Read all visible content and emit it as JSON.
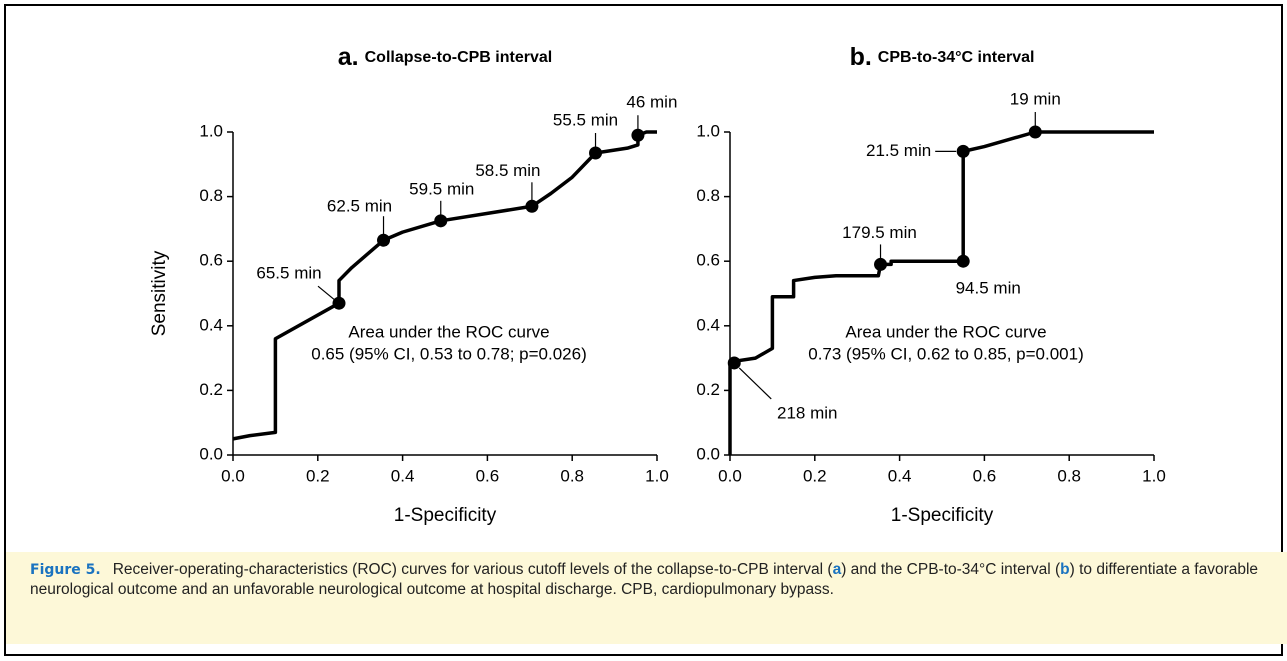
{
  "chart_data": [
    {
      "type": "line",
      "panel": "a.",
      "title": "Collapse-to-CPB interval",
      "xlabel": "1-Specificity",
      "ylabel": "Sensitivity",
      "x": [
        0,
        0.04,
        0.1,
        0.1,
        0.25,
        0.25,
        0.28,
        0.355,
        0.4,
        0.49,
        0.705,
        0.75,
        0.8,
        0.855,
        0.93,
        0.955,
        0.955,
        0.975,
        1.0
      ],
      "values": [
        0.05,
        0.06,
        0.07,
        0.36,
        0.47,
        0.54,
        0.58,
        0.665,
        0.69,
        0.725,
        0.77,
        0.81,
        0.86,
        0.935,
        0.95,
        0.96,
        0.99,
        1.0,
        1.0
      ],
      "color": "#000000",
      "points": {
        "x": [
          0.25,
          0.355,
          0.49,
          0.705,
          0.855,
          0.955
        ],
        "values": [
          0.47,
          0.665,
          0.725,
          0.77,
          0.935,
          0.99
        ],
        "labels": [
          "65.5 min",
          "62.5 min",
          "59.5 min",
          "58.5 min",
          "55.5 min",
          "46 min"
        ]
      },
      "annotations": [
        "Area under the ROC curve",
        "0.65 (95% CI, 0.53 to 0.78; p=0.026)"
      ],
      "xlim": [
        0,
        1
      ],
      "ylim": [
        0,
        1
      ],
      "xticks": [
        {
          "value": 0,
          "label": "0.0"
        },
        0.2,
        0.4,
        0.6,
        0.8,
        {
          "value": 1,
          "label": "1.0"
        }
      ],
      "yticks": [
        {
          "value": 0,
          "label": "0.0"
        },
        0.2,
        0.4,
        0.6,
        0.8,
        {
          "value": 1,
          "label": "1.0"
        }
      ]
    },
    {
      "type": "line",
      "panel": "b.",
      "title": "CPB-to-34°C interval",
      "xlabel": "1-Specificity",
      "x": [
        0,
        0,
        0.01,
        0.06,
        0.1,
        0.1,
        0.15,
        0.15,
        0.2,
        0.25,
        0.35,
        0.355,
        0.38,
        0.38,
        0.55,
        0.55,
        0.6,
        0.72,
        1.0
      ],
      "values": [
        0,
        0.285,
        0.29,
        0.3,
        0.33,
        0.49,
        0.49,
        0.54,
        0.55,
        0.555,
        0.555,
        0.59,
        0.59,
        0.6,
        0.6,
        0.94,
        0.955,
        1.0,
        1.0
      ],
      "color": "#000000",
      "points": {
        "x": [
          0.01,
          0.355,
          0.55,
          0.55,
          0.72
        ],
        "values": [
          0.285,
          0.59,
          0.6,
          0.94,
          1.0
        ],
        "labels": [
          "218 min",
          "179.5 min",
          "94.5 min",
          "21.5 min",
          "19 min"
        ]
      },
      "annotations": [
        "Area under the ROC curve",
        "0.73 (95% CI, 0.62 to 0.85, p=0.001)"
      ],
      "xlim": [
        0,
        1
      ],
      "ylim": [
        0,
        1
      ],
      "xticks": [
        {
          "value": 0,
          "label": "0.0"
        },
        0.2,
        0.4,
        0.6,
        0.8,
        {
          "value": 1,
          "label": "1.0"
        }
      ],
      "yticks": [
        {
          "value": 0,
          "label": "0.0"
        },
        0.2,
        0.4,
        0.6,
        0.8,
        {
          "value": 1,
          "label": "1.0"
        }
      ]
    }
  ],
  "caption": {
    "label": "Figure 5.",
    "parts": [
      "Receiver-operating-characteristics (ROC) curves for various cutoff levels of the collapse-to-CPB interval (",
      "a",
      ") and the CPB-to-34°C interval (",
      "b",
      ") to differentiate a favorable neurological outcome and an unfavorable neurological outcome at hospital discharge. CPB, cardiopulmonary bypass."
    ]
  }
}
